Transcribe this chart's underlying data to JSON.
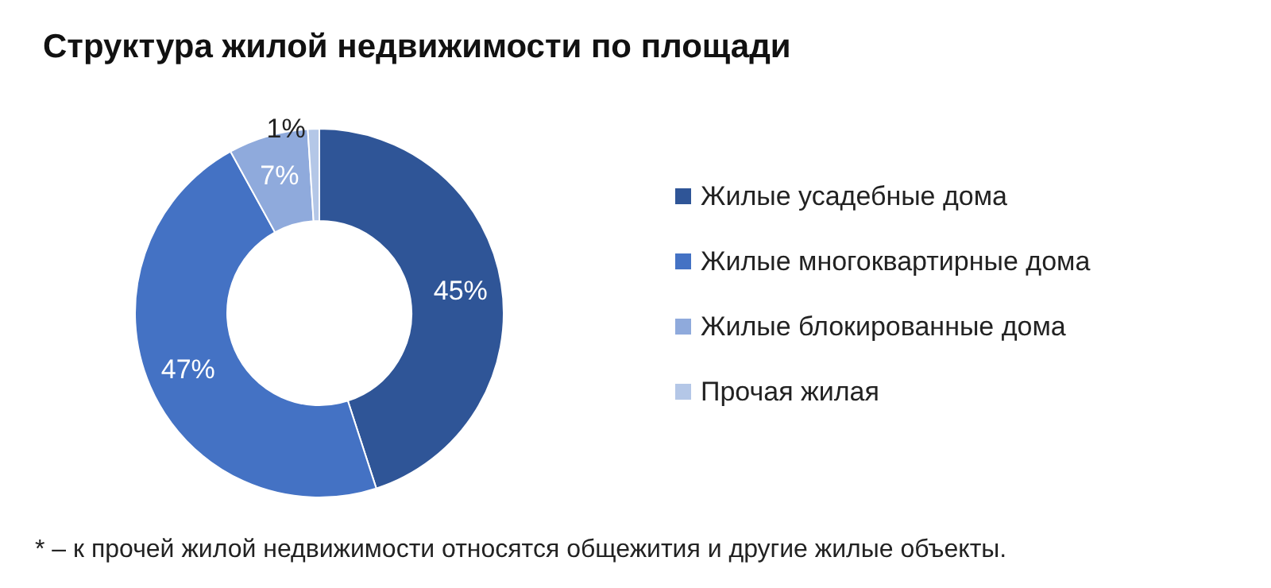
{
  "chart_data": {
    "type": "donut",
    "title": "Структура жилой недвижимости по площади",
    "categories": [
      "Жилые усадебные дома",
      "Жилые многоквартирные дома",
      "Жилые блокированные дома",
      "Прочая жилая"
    ],
    "values": [
      45,
      47,
      7,
      1
    ],
    "colors": [
      "#2f5597",
      "#4472c4",
      "#8faadc",
      "#b4c7e7"
    ],
    "value_labels": [
      "45%",
      "47%",
      "7%",
      "1%"
    ],
    "legend": "right",
    "annotations": [
      "* – к прочей жилой недвижимости относятся общежития и другие жилые объекты."
    ]
  }
}
